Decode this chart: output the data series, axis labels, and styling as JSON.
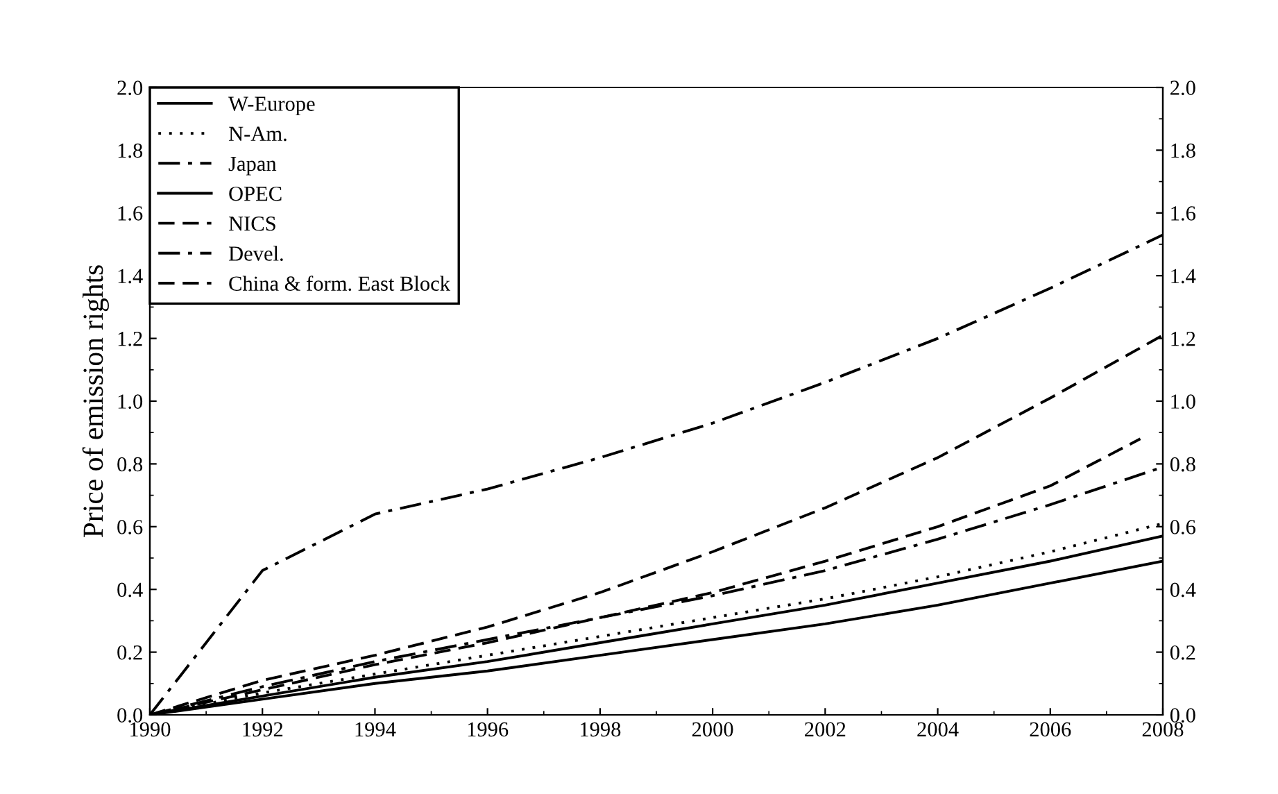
{
  "chart_data": {
    "type": "line",
    "ylabel": "Price of emission rights",
    "x": [
      1990,
      1992,
      1994,
      1996,
      1998,
      2000,
      2002,
      2004,
      2006,
      2008
    ],
    "series": [
      {
        "name": "W-Europe",
        "color": "#000000",
        "line_style": "solid",
        "values": [
          0,
          0.05,
          0.1,
          0.14,
          0.19,
          0.24,
          0.29,
          0.35,
          0.42,
          0.49
        ]
      },
      {
        "name": "N-Am.",
        "color": "#000000",
        "line_style": "dotted",
        "values": [
          0,
          0.07,
          0.13,
          0.19,
          0.25,
          0.31,
          0.37,
          0.44,
          0.52,
          0.61
        ]
      },
      {
        "name": "Japan",
        "color": "#000000",
        "line_style": "dashdot",
        "values": [
          0,
          0.09,
          0.17,
          0.24,
          0.31,
          0.38,
          0.46,
          0.56,
          0.67,
          0.79
        ]
      },
      {
        "name": "OPEC",
        "color": "#000000",
        "line_style": "solid",
        "values": [
          0,
          0.06,
          0.12,
          0.17,
          0.23,
          0.29,
          0.35,
          0.42,
          0.49,
          0.57
        ]
      },
      {
        "name": "NICS",
        "color": "#000000",
        "line_style": "dashed",
        "x": [
          1990,
          1992,
          1994,
          1996,
          1998,
          2000,
          2002,
          2004,
          2006,
          2007.6
        ],
        "values": [
          0,
          0.08,
          0.16,
          0.23,
          0.31,
          0.39,
          0.49,
          0.6,
          0.73,
          0.88
        ]
      },
      {
        "name": "Devel.",
        "color": "#000000",
        "line_style": "dashdot",
        "values": [
          0,
          0.46,
          0.64,
          0.72,
          0.82,
          0.93,
          1.06,
          1.2,
          1.36,
          1.53
        ]
      },
      {
        "name": "China & form. East Block",
        "color": "#000000",
        "line_style": "dashed",
        "values": [
          0,
          0.11,
          0.19,
          0.28,
          0.39,
          0.52,
          0.66,
          0.82,
          1.01,
          1.21
        ]
      }
    ],
    "xlim": [
      1990,
      2008
    ],
    "xticks": [
      1990,
      1992,
      1994,
      1996,
      1998,
      2000,
      2002,
      2004,
      2006,
      2008
    ],
    "ylim": [
      0,
      2.0
    ],
    "yticks": [
      {
        "value": 0,
        "label": "0.0"
      },
      0.2,
      0.4,
      0.6,
      0.8,
      {
        "value": 1,
        "label": "1.0"
      },
      1.2,
      1.4,
      1.6,
      1.8,
      {
        "value": 2,
        "label": "2.0"
      }
    ],
    "y2lim": [
      0,
      2.0
    ],
    "y2ticks": [
      {
        "value": 0,
        "label": "0.0"
      },
      0.2,
      0.4,
      0.6,
      0.8,
      {
        "value": 1,
        "label": "1.0"
      },
      1.2,
      1.4,
      1.6,
      1.8,
      {
        "value": 2,
        "label": "2.0"
      }
    ],
    "grid": false,
    "legend": "top left"
  }
}
